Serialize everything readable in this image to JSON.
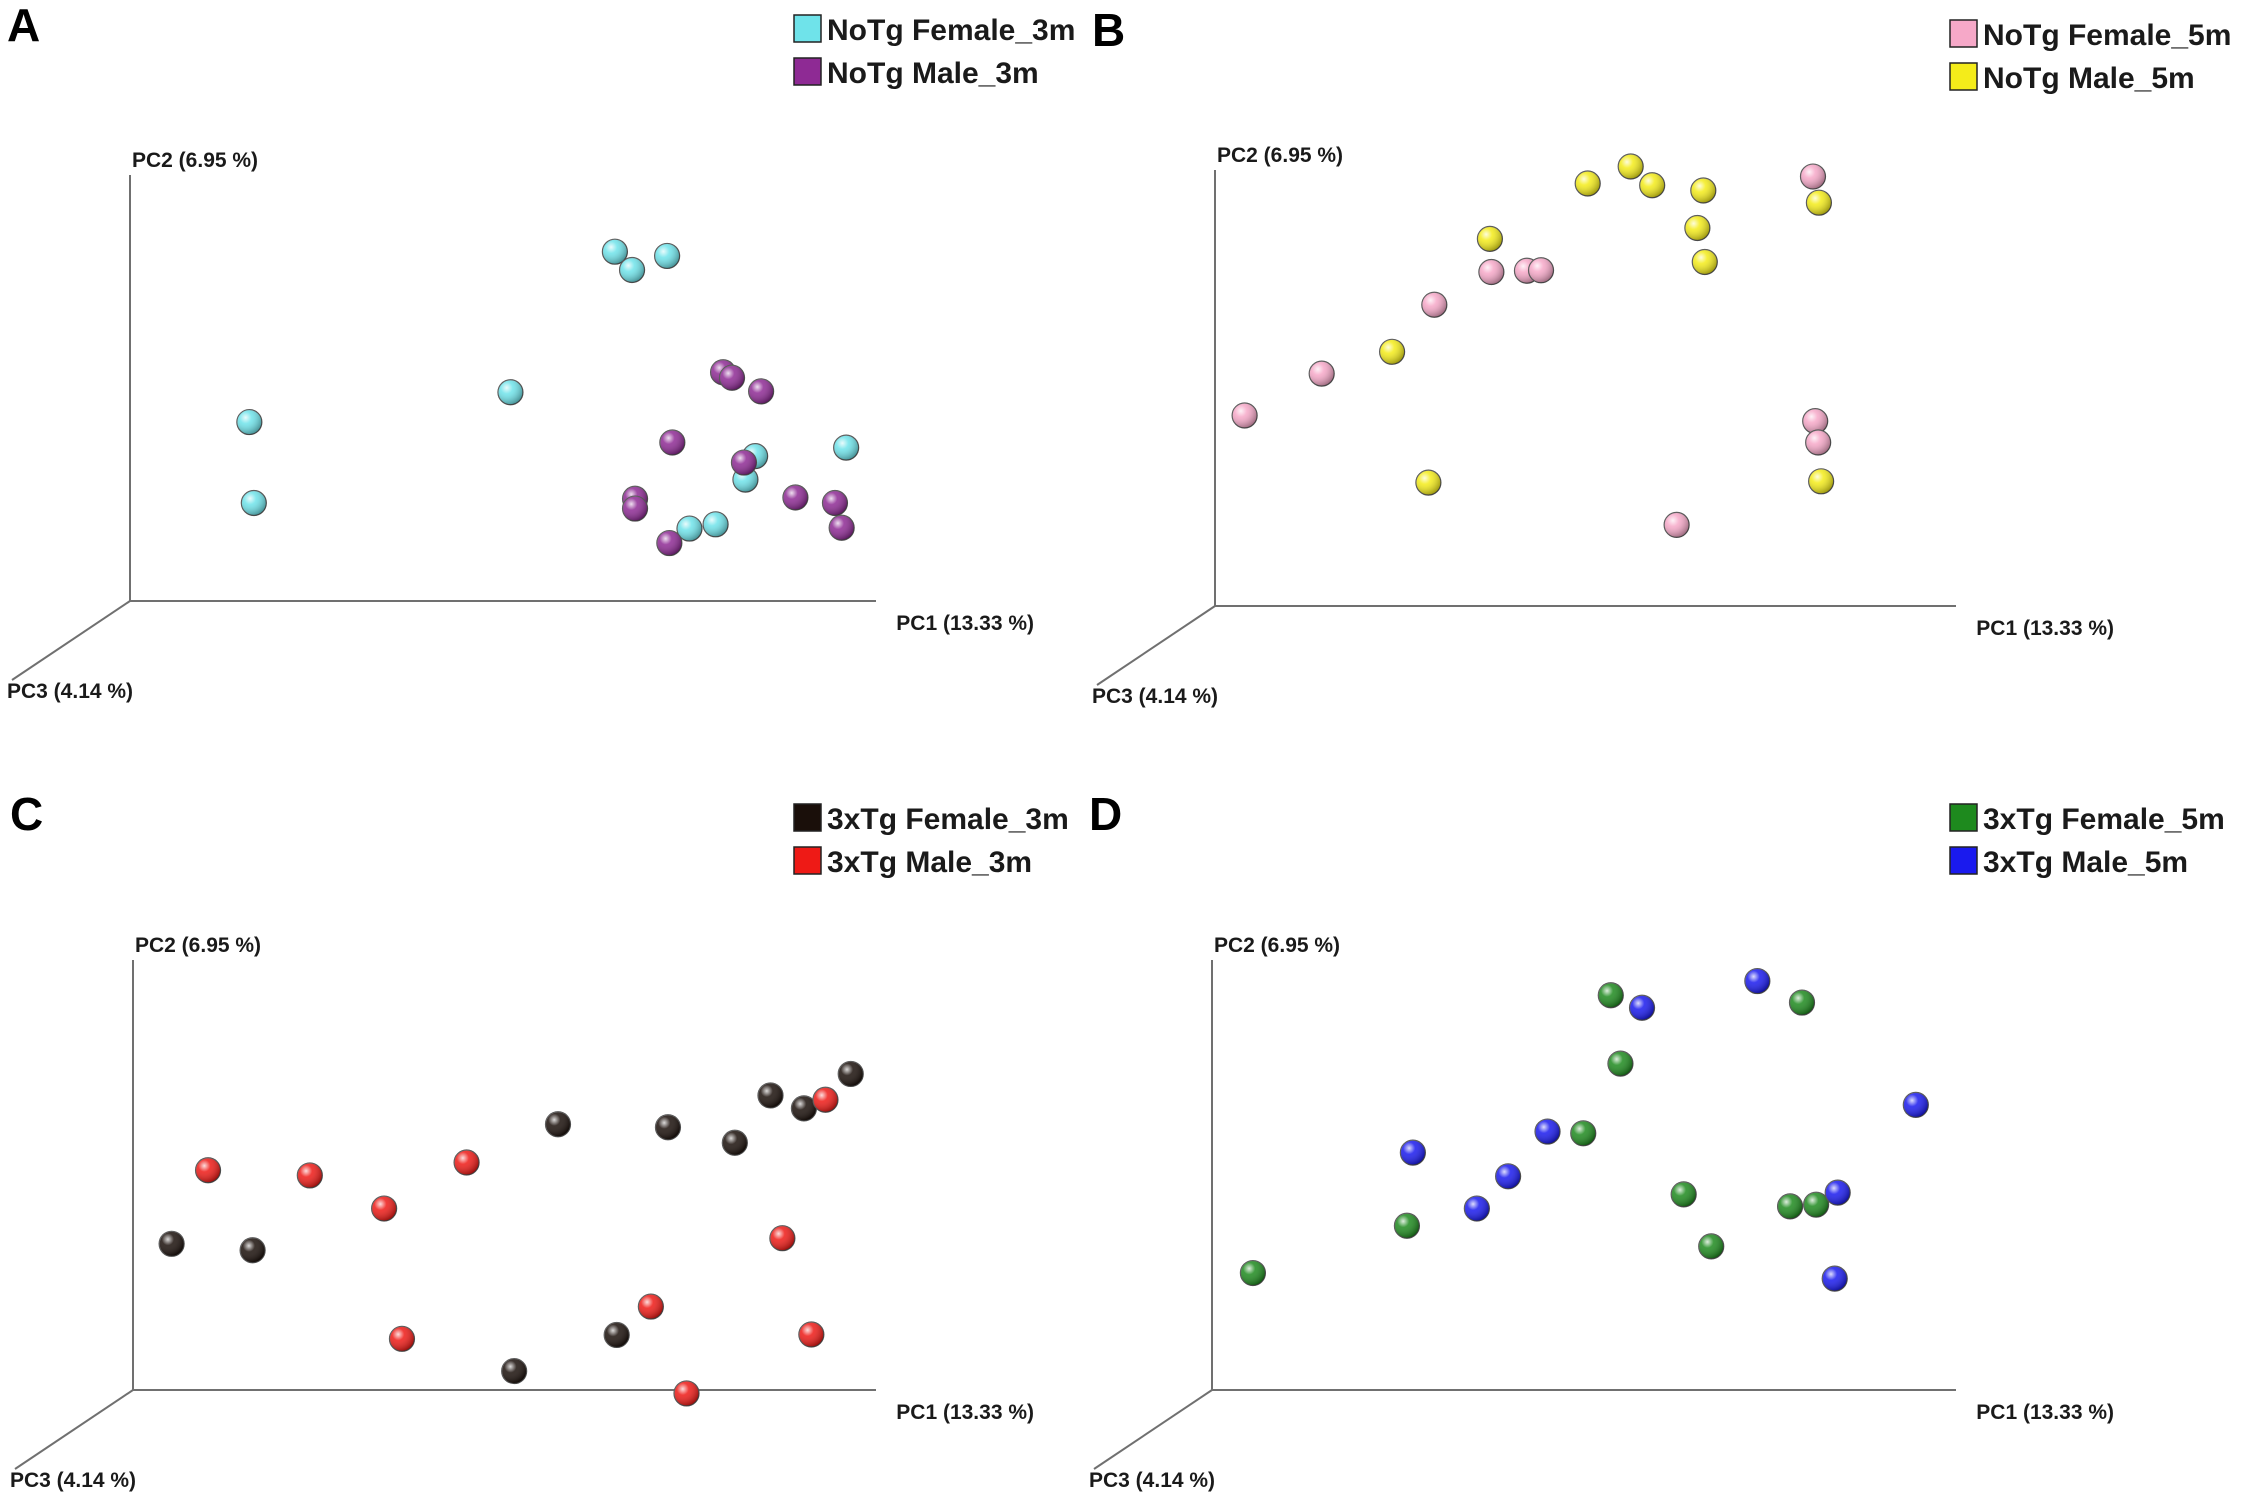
{
  "chart_data": [
    {
      "type": "scatter",
      "panel": "A",
      "title": "",
      "xlabel": "PC1 (13.33 %)",
      "ylabel": "PC2 (6.95 %)",
      "zlabel": "PC3 (4.14 %)",
      "xlim": [
        0,
        100
      ],
      "ylim": [
        0,
        100
      ],
      "grid": false,
      "legend_position": "top-right",
      "series": [
        {
          "name": "NoTg Female_3m",
          "color": "#6fe3ea",
          "points": [
            [
              16,
              42
            ],
            [
              16.6,
              23
            ],
            [
              65,
              82
            ],
            [
              72,
              81
            ],
            [
              67.3,
              77.7
            ],
            [
              51,
              49
            ],
            [
              83.8,
              34
            ],
            [
              82.5,
              28.5
            ],
            [
              96,
              36
            ],
            [
              78.5,
              18
            ],
            [
              75,
              17
            ]
          ]
        },
        {
          "name": "NoTg Male_3m",
          "color": "#8e2a94",
          "points": [
            [
              79.5,
              53.7
            ],
            [
              80.7,
              52.4
            ],
            [
              84.6,
              49.2
            ],
            [
              72.7,
              37.2
            ],
            [
              82.3,
              32.5
            ],
            [
              67.7,
              24
            ],
            [
              67.7,
              21.7
            ],
            [
              89.2,
              24.3
            ],
            [
              94.5,
              23
            ],
            [
              95.4,
              17.2
            ],
            [
              72.3,
              13.6
            ]
          ]
        }
      ]
    },
    {
      "type": "scatter",
      "panel": "B",
      "title": "",
      "xlabel": "PC1 (13.33 %)",
      "ylabel": "PC2 (6.95 %)",
      "zlabel": "PC3 (4.14 %)",
      "xlim": [
        0,
        100
      ],
      "ylim": [
        0,
        100
      ],
      "grid": false,
      "legend_position": "top-right",
      "series": [
        {
          "name": "NoTg Female_5m",
          "color": "#f6a8c8",
          "points": [
            [
              4,
              43.7
            ],
            [
              14.4,
              53.3
            ],
            [
              29.6,
              69.1
            ],
            [
              37.3,
              76.6
            ],
            [
              42.1,
              76.9
            ],
            [
              44,
              77
            ],
            [
              80.7,
              98.5
            ],
            [
              81,
              42.4
            ],
            [
              81.4,
              37.5
            ],
            [
              62.3,
              18.6
            ]
          ]
        },
        {
          "name": "NoTg Male_5m",
          "color": "#f4ec1a",
          "points": [
            [
              56.1,
              100.8
            ],
            [
              50.3,
              96.9
            ],
            [
              59,
              96.5
            ],
            [
              65.9,
              95.3
            ],
            [
              81.5,
              92.5
            ],
            [
              65.1,
              86.7
            ],
            [
              37.1,
              84.2
            ],
            [
              66.1,
              78.9
            ],
            [
              23.9,
              58.3
            ],
            [
              28.8,
              28.3
            ],
            [
              81.8,
              28.6
            ]
          ]
        }
      ]
    },
    {
      "type": "scatter",
      "panel": "C",
      "title": "",
      "xlabel": "PC1 (13.33 %)",
      "ylabel": "PC2 (6.95 %)",
      "zlabel": "PC3 (4.14 %)",
      "xlim": [
        0,
        100
      ],
      "ylim": [
        0,
        100
      ],
      "grid": false,
      "legend_position": "top-right",
      "series": [
        {
          "name": "3xTg Female_3m",
          "color": "#1a0f0a",
          "points": [
            [
              96.6,
              73.5
            ],
            [
              85.8,
              68.5
            ],
            [
              90.3,
              65.5
            ],
            [
              57.2,
              61.8
            ],
            [
              72,
              61.1
            ],
            [
              81,
              57.5
            ],
            [
              5.2,
              34
            ],
            [
              16.1,
              32.5
            ],
            [
              65.1,
              12.8
            ],
            [
              51.3,
              4.4
            ]
          ]
        },
        {
          "name": "3xTg Male_3m",
          "color": "#ee1a16",
          "points": [
            [
              93.2,
              67.5
            ],
            [
              10.1,
              51.1
            ],
            [
              23.8,
              49.9
            ],
            [
              44.9,
              52.9
            ],
            [
              33.8,
              42.2
            ],
            [
              87.4,
              35.3
            ],
            [
              69.7,
              19.4
            ],
            [
              91.3,
              12.9
            ],
            [
              36.2,
              11.9
            ],
            [
              74.5,
              -0.8
            ]
          ]
        }
      ]
    },
    {
      "type": "scatter",
      "panel": "D",
      "title": "",
      "xlabel": "PC1 (13.33 %)",
      "ylabel": "PC2 (6.95 %)",
      "zlabel": "PC3 (4.14 %)",
      "xlim": [
        0,
        100
      ],
      "ylim": [
        0,
        100
      ],
      "grid": false,
      "legend_position": "top-right",
      "series": [
        {
          "name": "3xTg Female_5m",
          "color": "#1e8a1e",
          "points": [
            [
              53.6,
              91.8
            ],
            [
              79.3,
              90.1
            ],
            [
              54.9,
              75.9
            ],
            [
              49.9,
              59.7
            ],
            [
              63.4,
              45.5
            ],
            [
              77.7,
              42.7
            ],
            [
              81.2,
              43.1
            ],
            [
              26.2,
              38.2
            ],
            [
              67.1,
              33.4
            ],
            [
              5.5,
              27.2
            ]
          ]
        },
        {
          "name": "3xTg Male_5m",
          "color": "#1a1aee",
          "points": [
            [
              73.3,
              95.1
            ],
            [
              57.8,
              88.9
            ],
            [
              94.6,
              66.3
            ],
            [
              45.1,
              60.1
            ],
            [
              27,
              55.2
            ],
            [
              39.8,
              49.7
            ],
            [
              35.6,
              42.2
            ],
            [
              84.1,
              45.9
            ],
            [
              83.7,
              25.9
            ]
          ]
        }
      ]
    }
  ]
}
